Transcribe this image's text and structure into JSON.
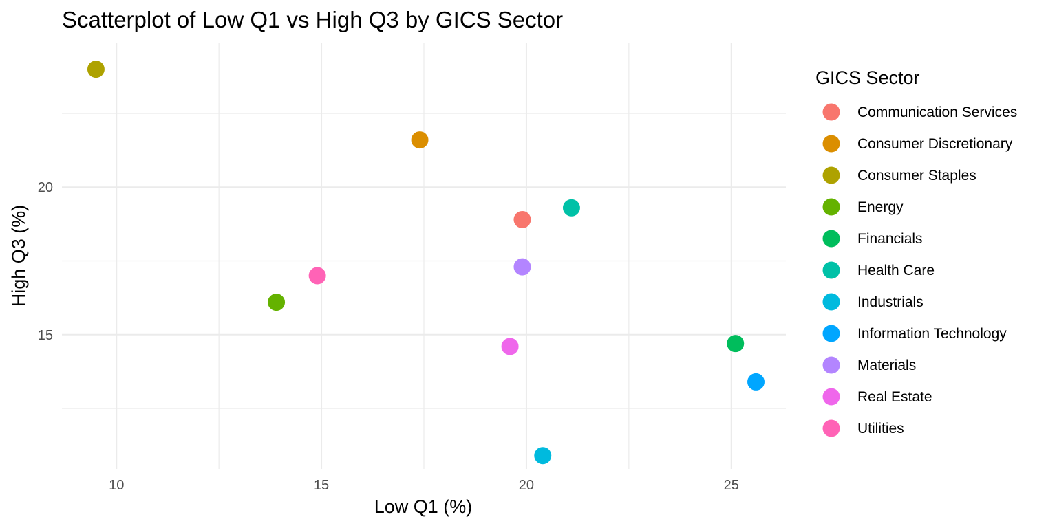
{
  "chart_data": {
    "type": "scatter",
    "title": "Scatterplot of Low Q1 vs High Q3 by GICS Sector",
    "xlabel": "Low Q1 (%)",
    "ylabel": "High Q3 (%)",
    "xlim": [
      8.67,
      26.33
    ],
    "ylim": [
      10.45,
      24.9
    ],
    "x_ticks": [
      10,
      15,
      20,
      25
    ],
    "y_ticks": [
      15,
      20
    ],
    "grid": true,
    "legend": {
      "title": "GICS Sector",
      "position": "right"
    },
    "series": [
      {
        "name": "Communication Services",
        "color": "#F8766D",
        "points": [
          {
            "x": 19.9,
            "y": 18.9
          }
        ]
      },
      {
        "name": "Consumer Discretionary",
        "color": "#DB8E00",
        "points": [
          {
            "x": 17.4,
            "y": 21.6
          }
        ]
      },
      {
        "name": "Consumer Staples",
        "color": "#AEA200",
        "points": [
          {
            "x": 9.5,
            "y": 24.0
          }
        ]
      },
      {
        "name": "Energy",
        "color": "#64B200",
        "points": [
          {
            "x": 13.9,
            "y": 16.1
          }
        ]
      },
      {
        "name": "Financials",
        "color": "#00BD5C",
        "points": [
          {
            "x": 25.1,
            "y": 14.7
          }
        ]
      },
      {
        "name": "Health Care",
        "color": "#00C1A7",
        "points": [
          {
            "x": 21.1,
            "y": 19.3
          }
        ]
      },
      {
        "name": "Industrials",
        "color": "#00BADE",
        "points": [
          {
            "x": 20.4,
            "y": 10.9
          }
        ]
      },
      {
        "name": "Information Technology",
        "color": "#00A6FF",
        "points": [
          {
            "x": 25.6,
            "y": 13.4
          }
        ]
      },
      {
        "name": "Materials",
        "color": "#B385FF",
        "points": [
          {
            "x": 19.9,
            "y": 17.3
          }
        ]
      },
      {
        "name": "Real Estate",
        "color": "#EF67EB",
        "points": [
          {
            "x": 19.6,
            "y": 14.6
          }
        ]
      },
      {
        "name": "Utilities",
        "color": "#FF63B6",
        "points": [
          {
            "x": 14.9,
            "y": 17.0
          }
        ]
      }
    ]
  }
}
